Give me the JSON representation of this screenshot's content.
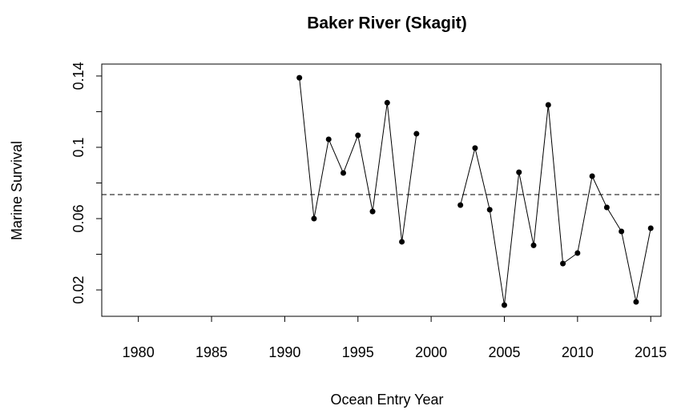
{
  "chart_data": {
    "type": "line",
    "title": "Baker River (Skagit)",
    "x_label": "Ocean Entry Year",
    "y_label": "Marine Survival",
    "x": [
      1991,
      1992,
      1993,
      1994,
      1995,
      1996,
      1997,
      1998,
      1999,
      2000,
      2001,
      2002,
      2003,
      2004,
      2005,
      2006,
      2007,
      2008,
      2009,
      2010,
      2011,
      2012,
      2013,
      2014,
      2015
    ],
    "series": [
      {
        "color": "#000000",
        "values": [
          0.139,
          0.06,
          0.1045,
          0.0856,
          0.1067,
          0.064,
          0.125,
          0.047,
          0.1076,
          null,
          null,
          0.0676,
          0.0996,
          0.065,
          0.0115,
          0.086,
          0.045,
          0.1238,
          0.0348,
          0.0407,
          0.0838,
          0.0663,
          0.0528,
          0.0133,
          0.0546
        ]
      }
    ],
    "reference_line": 0.0735,
    "xlim": [
      1977.5,
      2015.7
    ],
    "xticks": [
      1980,
      1985,
      1990,
      1995,
      2000,
      2005,
      2010,
      2015
    ],
    "ylim": [
      0.0052,
      0.1467
    ],
    "yticks": [
      0.02,
      0.06,
      0.1,
      0.14
    ],
    "yminor_ticks": [
      0.04,
      0.08,
      0.12
    ],
    "grid": false
  }
}
